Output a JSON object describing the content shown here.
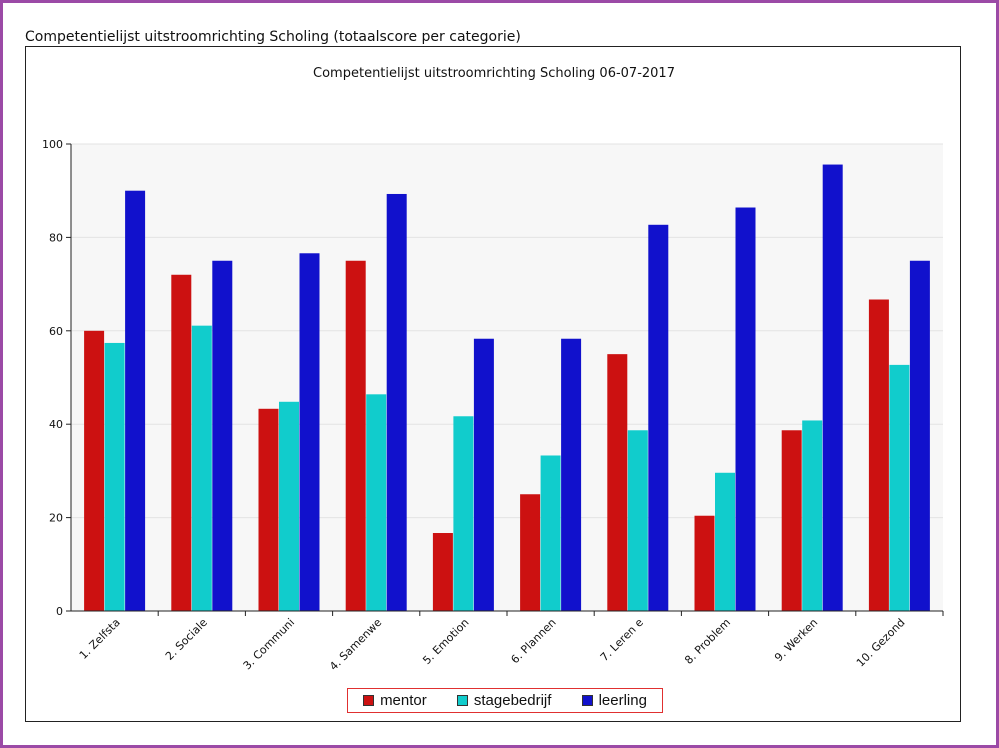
{
  "page": {
    "heading": "Competentielijst uitstroomrichting Scholing (totaalscore per categorie)"
  },
  "chart_data": {
    "type": "bar",
    "title": "Competentielijst uitstroomrichting Scholing 06-07-2017",
    "xlabel": "",
    "ylabel": "",
    "ylim": [
      0,
      100
    ],
    "yticks": [
      0,
      20,
      40,
      60,
      80,
      100
    ],
    "grid": true,
    "legend_position": "bottom",
    "categories": [
      "1. Zelfsta",
      "2. Sociale",
      "3. Communi",
      "4. Samenwe",
      "5. Emotion",
      "6. Plannen",
      "7. Leren e",
      "8. Problem",
      "9. Werken",
      "10. Gezond"
    ],
    "series": [
      {
        "name": "mentor",
        "color": "#cc1111",
        "values": [
          60,
          72,
          43.3,
          75,
          16.7,
          25,
          55,
          20.4,
          38.7,
          66.7
        ]
      },
      {
        "name": "stagebedrijf",
        "color": "#11cccc",
        "values": [
          57.4,
          61.1,
          44.8,
          46.4,
          41.7,
          33.3,
          38.7,
          29.6,
          40.8,
          52.7
        ]
      },
      {
        "name": "leerling",
        "color": "#1111cc",
        "values": [
          90,
          75,
          76.6,
          89.3,
          58.3,
          58.3,
          82.7,
          86.4,
          95.6,
          75
        ]
      }
    ]
  }
}
